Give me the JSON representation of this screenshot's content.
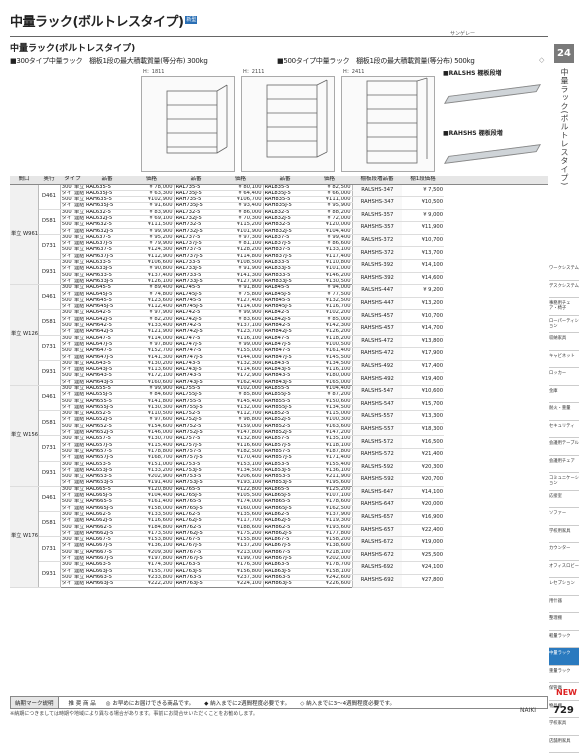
{
  "header": {
    "title": "中量ラック(ボルトレスタイプ)",
    "title_tag": "新型",
    "corner": "サンゲレー",
    "subtitle": "中量ラック(ボルトレスタイプ)",
    "spec_300": "■300タイプ中量ラック　棚板1段の最大積載質量(等分布) 300kg",
    "spec_500": "■500タイプ中量ラック　棚板1段の最大積載質量(等分布) 500kg"
  },
  "side": {
    "page_tab": "24",
    "vertical_title": "中量ラック(ボルトレスタイプ)"
  },
  "diagrams": {
    "h1": "H：1811",
    "h2": "H：2111",
    "h3": "H：2411",
    "board1": "■RALSHS 棚板段増",
    "board2": "■RAHSHS 棚板段増"
  },
  "table_headers": {
    "col1": "間口",
    "col2": "奥行",
    "col3": "タイプ",
    "col4": "品番",
    "col5": "価格",
    "col6": "品番",
    "col7": "価格",
    "col8": "品番",
    "col9": "価格",
    "col10": "棚板段増品番",
    "col11": "棚1段価格"
  },
  "rows": [
    {
      "g": "単立 W961",
      "d": "D461",
      "t1": "300",
      "t2": "単立",
      "c1": "RAL635-5",
      "p1": "¥ 78,000",
      "c2": "RAL735-5",
      "p2": "¥ 80,100",
      "c3": "RAL835-5",
      "p3": "¥ 82,500",
      "bc": "RALSHS-347",
      "bp": "¥ 7,500"
    },
    {
      "t1": "タイプ",
      "t2": "連結",
      "c1": "RAL635J-5",
      "p1": "¥ 63,300",
      "c2": "RAL735J-5",
      "p2": "¥ 64,400",
      "c3": "RAL835J-5",
      "p3": "¥ 66,000"
    },
    {
      "t1": "500",
      "t2": "単立",
      "c1": "RAH635-5",
      "p1": "¥102,900",
      "c2": "RAH735-5",
      "p2": "¥106,700",
      "c3": "RAH835-5",
      "p3": "¥111,000",
      "bc": "RAHSHS-347",
      "bp": "¥10,500"
    },
    {
      "t1": "タイプ",
      "t2": "連結",
      "c1": "RAH635J-5",
      "p1": "¥ 91,600",
      "c2": "RAH735J-5",
      "p2": "¥ 93,400",
      "c3": "RAH835J-5",
      "p3": "¥ 95,900"
    },
    {
      "d": "D581",
      "t1": "300",
      "t2": "単立",
      "c1": "RAL632-5",
      "p1": "¥ 83,900",
      "c2": "RAL732-5",
      "p2": "¥ 86,000",
      "c3": "RAL832-5",
      "p3": "¥ 88,200",
      "bc": "RALSHS-357",
      "bp": "¥ 9,000"
    },
    {
      "t1": "タイプ",
      "t2": "連結",
      "c1": "RAL632J-5",
      "p1": "¥ 69,100",
      "c2": "RAL732J-5",
      "p2": "¥ 70,300",
      "c3": "RAL832J-5",
      "p3": "¥ 72,000"
    },
    {
      "t1": "500",
      "t2": "単立",
      "c1": "RAH632-5",
      "p1": "¥111,500",
      "c2": "RAH732-5",
      "p2": "¥115,200",
      "c3": "RAH832-5",
      "p3": "¥120,000",
      "bc": "RAHSHS-357",
      "bp": "¥11,900"
    },
    {
      "t1": "タイプ",
      "t2": "連結",
      "c1": "RAH632J-5",
      "p1": "¥ 99,900",
      "c2": "RAH732J-5",
      "p2": "¥101,900",
      "c3": "RAH832J-5",
      "p3": "¥104,400"
    },
    {
      "d": "D731",
      "t1": "300",
      "t2": "単立",
      "c1": "RAL637-5",
      "p1": "¥ 95,200",
      "c2": "RAL737-5",
      "p2": "¥ 97,300",
      "c3": "RAL837-5",
      "p3": "¥ 99,400",
      "bc": "RALSHS-372",
      "bp": "¥10,700"
    },
    {
      "t1": "タイプ",
      "t2": "連結",
      "c1": "RAL637J-5",
      "p1": "¥ 79,900",
      "c2": "RAL737J-5",
      "p2": "¥ 81,100",
      "c3": "RAL837J-5",
      "p3": "¥ 86,600"
    },
    {
      "t1": "500",
      "t2": "単立",
      "c1": "RAH637-5",
      "p1": "¥124,300",
      "c2": "RAH737-5",
      "p2": "¥128,200",
      "c3": "RAH837-5",
      "p3": "¥133,100",
      "bc": "RAHSHS-372",
      "bp": "¥13,700"
    },
    {
      "t1": "タイプ",
      "t2": "連結",
      "c1": "RAH637J-5",
      "p1": "¥112,900",
      "c2": "RAH737J-5",
      "p2": "¥114,800",
      "c3": "RAH837J-5",
      "p3": "¥117,400"
    },
    {
      "d": "D931",
      "t1": "300",
      "t2": "単立",
      "c1": "RAL633-5",
      "p1": "¥106,600",
      "c2": "RAL733-5",
      "p2": "¥108,500",
      "c3": "RAL833-5",
      "p3": "¥110,800",
      "bc": "RALSHS-392",
      "bp": "¥14,100"
    },
    {
      "t1": "タイプ",
      "t2": "連結",
      "c1": "RAL633J-5",
      "p1": "¥ 90,800",
      "c2": "RAL733J-5",
      "p2": "¥ 91,900",
      "c3": "RAL833J-5",
      "p3": "¥101,000"
    },
    {
      "t1": "500",
      "t2": "単立",
      "c1": "RAH633-5",
      "p1": "¥137,400",
      "c2": "RAH733-5",
      "p2": "¥141,300",
      "c3": "RAH833-5",
      "p3": "¥146,200",
      "bc": "RAHSHS-392",
      "bp": "¥14,600"
    },
    {
      "t1": "タイプ",
      "t2": "連結",
      "c1": "RAH633J-5",
      "p1": "¥126,100",
      "c2": "RAH733J-5",
      "p2": "¥127,900",
      "c3": "RAH833J-5",
      "p3": "¥130,500",
      "end": true
    },
    {
      "g": "単立 W1261",
      "d": "D461",
      "t1": "300",
      "t2": "単立",
      "c1": "RAL645-5",
      "p1": "¥ 89,400",
      "c2": "RAL745-5",
      "p2": "¥ 91,800",
      "c3": "RAL845-5",
      "p3": "¥ 94,000",
      "bc": "RALSHS-447",
      "bp": "¥ 9,200"
    },
    {
      "t1": "タイプ",
      "t2": "連結",
      "c1": "RAL645J-5",
      "p1": "¥ 74,800",
      "c2": "RAL745J-5",
      "p2": "¥ 75,800",
      "c3": "RAL845J-5",
      "p3": "¥ 77,500"
    },
    {
      "t1": "500",
      "t2": "単立",
      "c1": "RAH645-5",
      "p1": "¥123,600",
      "c2": "RAH745-5",
      "p2": "¥127,400",
      "c3": "RAH845-5",
      "p3": "¥132,500",
      "bc": "RAHSHS-447",
      "bp": "¥13,200"
    },
    {
      "t1": "タイプ",
      "t2": "連結",
      "c1": "RAH645J-5",
      "p1": "¥112,400",
      "c2": "RAH745J-5",
      "p2": "¥114,000",
      "c3": "RAH845J-5",
      "p3": "¥116,700"
    },
    {
      "d": "D581",
      "t1": "300",
      "t2": "単立",
      "c1": "RAL642-5",
      "p1": "¥ 97,900",
      "c2": "RAL742-5",
      "p2": "¥ 99,900",
      "c3": "RAL842-5",
      "p3": "¥102,200",
      "bc": "RALSHS-457",
      "bp": "¥10,700"
    },
    {
      "t1": "タイプ",
      "t2": "連結",
      "c1": "RAL642J-5",
      "p1": "¥ 82,200",
      "c2": "RAL742J-5",
      "p2": "¥ 83,600",
      "c3": "RAL842J-5",
      "p3": "¥ 85,000"
    },
    {
      "t1": "500",
      "t2": "単立",
      "c1": "RAH642-5",
      "p1": "¥133,400",
      "c2": "RAH742-5",
      "p2": "¥137,100",
      "c3": "RAH842-5",
      "p3": "¥142,300",
      "bc": "RAHSHS-457",
      "bp": "¥14,700"
    },
    {
      "t1": "タイプ",
      "t2": "連結",
      "c1": "RAH642J-5",
      "p1": "¥121,900",
      "c2": "RAH742J-5",
      "p2": "¥123,700",
      "c3": "RAH842J-5",
      "p3": "¥126,200"
    },
    {
      "d": "D731",
      "t1": "300",
      "t2": "単立",
      "c1": "RAL647-5",
      "p1": "¥114,000",
      "c2": "RAL747-5",
      "p2": "¥116,100",
      "c3": "RAL847-5",
      "p3": "¥118,200",
      "bc": "RALSHS-472",
      "bp": "¥13,800"
    },
    {
      "t1": "タイプ",
      "t2": "連結",
      "c1": "RAL647J-5",
      "p1": "¥ 97,800",
      "c2": "RAL747J-5",
      "p2": "¥ 99,000",
      "c3": "RAL847J-5",
      "p3": "¥100,500"
    },
    {
      "t1": "500",
      "t2": "単立",
      "c1": "RAH647-5",
      "p1": "¥152,700",
      "c2": "RAH747-5",
      "p2": "¥155,000",
      "c3": "RAH847-5",
      "p3": "¥161,400",
      "bc": "RAHSHS-472",
      "bp": "¥17,900"
    },
    {
      "t1": "タイプ",
      "t2": "連結",
      "c1": "RAH647J-5",
      "p1": "¥141,300",
      "c2": "RAH747J-5",
      "p2": "¥144,000",
      "c3": "RAH847J-5",
      "p3": "¥145,500"
    },
    {
      "d": "D931",
      "t1": "300",
      "t2": "単立",
      "c1": "RAL643-5",
      "p1": "¥130,200",
      "c2": "RAL743-5",
      "p2": "¥132,300",
      "c3": "RAL843-5",
      "p3": "¥134,500",
      "bc": "RALSHS-492",
      "bp": "¥17,400"
    },
    {
      "t1": "タイプ",
      "t2": "連結",
      "c1": "RAL643J-5",
      "p1": "¥113,600",
      "c2": "RAL743J-5",
      "p2": "¥114,600",
      "c3": "RAL843J-5",
      "p3": "¥116,100"
    },
    {
      "t1": "500",
      "t2": "単立",
      "c1": "RAH643-5",
      "p1": "¥172,100",
      "c2": "RAH743-5",
      "p2": "¥172,900",
      "c3": "RAH843-5",
      "p3": "¥180,000",
      "bc": "RAHSHS-492",
      "bp": "¥19,400"
    },
    {
      "t1": "タイプ",
      "t2": "連結",
      "c1": "RAH643J-5",
      "p1": "¥160,600",
      "c2": "RAH743J-5",
      "p2": "¥162,400",
      "c3": "RAH843J-5",
      "p3": "¥165,000",
      "end": true
    },
    {
      "g": "単立 W1561",
      "d": "D461",
      "t1": "300",
      "t2": "単立",
      "c1": "RAL655-5",
      "p1": "¥ 99,900",
      "c2": "RAL755-5",
      "p2": "¥102,000",
      "c3": "RAL855-5",
      "p3": "¥104,400",
      "bc": "RALSHS-547",
      "bp": "¥10,600"
    },
    {
      "t1": "タイプ",
      "t2": "連結",
      "c1": "RAL655J-5",
      "p1": "¥ 84,600",
      "c2": "RAL755J-5",
      "p2": "¥ 85,800",
      "c3": "RAL855J-5",
      "p3": "¥ 87,200"
    },
    {
      "t1": "500",
      "t2": "単立",
      "c1": "RAH655-5",
      "p1": "¥141,800",
      "c2": "RAH755-5",
      "p2": "¥145,400",
      "c3": "RAH855-5",
      "p3": "¥150,600",
      "bc": "RAHSHS-547",
      "bp": "¥15,700"
    },
    {
      "t1": "タイプ",
      "t2": "連結",
      "c1": "RAH655J-5",
      "p1": "¥130,300",
      "c2": "RAH755J-5",
      "p2": "¥132,000",
      "c3": "RAH855J-5",
      "p3": "¥134,500"
    },
    {
      "d": "D581",
      "t1": "300",
      "t2": "単立",
      "c1": "RAL652-5",
      "p1": "¥110,500",
      "c2": "RAL752-5",
      "p2": "¥112,700",
      "c3": "RAL852-5",
      "p3": "¥115,000",
      "bc": "RALSHS-557",
      "bp": "¥13,300"
    },
    {
      "t1": "タイプ",
      "t2": "連結",
      "c1": "RAL652J-5",
      "p1": "¥ 97,600",
      "c2": "RAL752J-5",
      "p2": "¥ 98,800",
      "c3": "RAL852J-5",
      "p3": "¥100,300"
    },
    {
      "t1": "500",
      "t2": "単立",
      "c1": "RAH652-5",
      "p1": "¥154,600",
      "c2": "RAH752-5",
      "p2": "¥159,000",
      "c3": "RAH852-5",
      "p3": "¥163,600",
      "bc": "RAHSHS-557",
      "bp": "¥18,300"
    },
    {
      "t1": "タイプ",
      "t2": "連結",
      "c1": "RAH652J-5",
      "p1": "¥146,000",
      "c2": "RAH752J-5",
      "p2": "¥147,800",
      "c3": "RAH852J-5",
      "p3": "¥147,200"
    },
    {
      "d": "D731",
      "t1": "300",
      "t2": "単立",
      "c1": "RAL657-5",
      "p1": "¥130,700",
      "c2": "RAL757-5",
      "p2": "¥132,800",
      "c3": "RAL857-5",
      "p3": "¥135,100",
      "bc": "RALSHS-572",
      "bp": "¥16,500"
    },
    {
      "t1": "タイプ",
      "t2": "連結",
      "c1": "RAL657J-5",
      "p1": "¥115,400",
      "c2": "RAL757J-5",
      "p2": "¥116,600",
      "c3": "RAL857J-5",
      "p3": "¥118,100"
    },
    {
      "t1": "500",
      "t2": "単立",
      "c1": "RAH657-5",
      "p1": "¥178,800",
      "c2": "RAH757-5",
      "p2": "¥182,500",
      "c3": "RAH857-5",
      "p3": "¥187,800",
      "bc": "RAHSHS-572",
      "bp": "¥21,400"
    },
    {
      "t1": "タイプ",
      "t2": "連結",
      "c1": "RAH657J-5",
      "p1": "¥168,700",
      "c2": "RAH757J-5",
      "p2": "¥170,400",
      "c3": "RAH857J-5",
      "p3": "¥171,400"
    },
    {
      "d": "D931",
      "t1": "300",
      "t2": "単立",
      "c1": "RAL653-5",
      "p1": "¥151,000",
      "c2": "RAL753-5",
      "p2": "¥153,100",
      "c3": "RAL853-5",
      "p3": "¥155,400",
      "bc": "RALSHS-592",
      "bp": "¥20,300"
    },
    {
      "t1": "タイプ",
      "t2": "連結",
      "c1": "RAL653J-5",
      "p1": "¥133,200",
      "c2": "RAL753J-5",
      "p2": "¥134,500",
      "c3": "RAL853J-5",
      "p3": "¥136,100"
    },
    {
      "t1": "500",
      "t2": "単立",
      "c1": "RAH653-5",
      "p1": "¥202,900",
      "c2": "RAH753-5",
      "p2": "¥206,600",
      "c3": "RAH853-5",
      "p3": "¥211,900",
      "bc": "RAHSHS-592",
      "bp": "¥20,700"
    },
    {
      "t1": "タイプ",
      "t2": "連結",
      "c1": "RAH653J-5",
      "p1": "¥191,400",
      "c2": "RAH753J-5",
      "p2": "¥193,100",
      "c3": "RAH853J-5",
      "p3": "¥195,600",
      "end": true
    },
    {
      "g": "単立 W1761",
      "d": "D461",
      "t1": "300",
      "t2": "単立",
      "c1": "RAL665-5",
      "p1": "¥120,800",
      "c2": "RAL765-5",
      "p2": "¥122,800",
      "c3": "RAL865-5",
      "p3": "¥125,200",
      "bc": "RALSHS-647",
      "bp": "¥14,100"
    },
    {
      "t1": "タイプ",
      "t2": "連結",
      "c1": "RAL665J-5",
      "p1": "¥104,400",
      "c2": "RAL765J-5",
      "p2": "¥105,500",
      "c3": "RAL865J-5",
      "p3": "¥107,100"
    },
    {
      "t1": "500",
      "t2": "単立",
      "c1": "RAH665-5",
      "p1": "¥161,400",
      "c2": "RAH765-5",
      "p2": "¥174,000",
      "c3": "RAH865-5",
      "p3": "¥178,600",
      "bc": "RAHSHS-647",
      "bp": "¥20,000"
    },
    {
      "t1": "タイプ",
      "t2": "連結",
      "c1": "RAH665J-5",
      "p1": "¥158,000",
      "c2": "RAH765J-5",
      "p2": "¥160,000",
      "c3": "RAH865J-5",
      "p3": "¥162,500"
    },
    {
      "d": "D581",
      "t1": "300",
      "t2": "単立",
      "c1": "RAL662-5",
      "p1": "¥133,500",
      "c2": "RAL762-5",
      "p2": "¥135,600",
      "c3": "RAL862-5",
      "p3": "¥137,900",
      "bc": "RALSHS-657",
      "bp": "¥16,900"
    },
    {
      "t1": "タイプ",
      "t2": "連結",
      "c1": "RAL662J-5",
      "p1": "¥116,600",
      "c2": "RAL762J-5",
      "p2": "¥117,700",
      "c3": "RAL862J-5",
      "p3": "¥119,300"
    },
    {
      "t1": "500",
      "t2": "単立",
      "c1": "RAH662-5",
      "p1": "¥184,800",
      "c2": "RAH762-5",
      "p2": "¥188,600",
      "c3": "RAH862-5",
      "p3": "¥193,600",
      "bc": "RAHSHS-657",
      "bp": "¥22,400"
    },
    {
      "t1": "タイプ",
      "t2": "連結",
      "c1": "RAH662J-5",
      "p1": "¥173,500",
      "c2": "RAH762J-5",
      "p2": "¥175,200",
      "c3": "RAH862J-5",
      "p3": "¥177,800"
    },
    {
      "d": "D731",
      "t1": "300",
      "t2": "単立",
      "c1": "RAL667-5",
      "p1": "¥153,800",
      "c2": "RAL767-5",
      "p2": "¥155,800",
      "c3": "RAL867-5",
      "p3": "¥158,200",
      "bc": "RALSHS-672",
      "bp": "¥19,000"
    },
    {
      "t1": "タイプ",
      "t2": "連結",
      "c1": "RAL667J-5",
      "p1": "¥136,100",
      "c2": "RAL767J-5",
      "p2": "¥137,200",
      "c3": "RAL867J-5",
      "p3": "¥138,600"
    },
    {
      "t1": "500",
      "t2": "単立",
      "c1": "RAH667-5",
      "p1": "¥209,300",
      "c2": "RAH767-5",
      "p2": "¥213,000",
      "c3": "RAH867-5",
      "p3": "¥218,100",
      "bc": "RAHSHS-672",
      "bp": "¥25,500"
    },
    {
      "t1": "タイプ",
      "t2": "連結",
      "c1": "RAH667J-5",
      "p1": "¥197,800",
      "c2": "RAH767J-5",
      "p2": "¥199,700",
      "c3": "RAH867J-5",
      "p3": "¥202,000"
    },
    {
      "d": "D931",
      "t1": "300",
      "t2": "単立",
      "c1": "RAL663-5",
      "p1": "¥174,300",
      "c2": "RAL763-5",
      "p2": "¥176,300",
      "c3": "RAL863-5",
      "p3": "¥178,700",
      "bc": "RALSHS-692",
      "bp": "¥24,100"
    },
    {
      "t1": "タイプ",
      "t2": "連結",
      "c1": "RAL663J-5",
      "p1": "¥155,700",
      "c2": "RAL763J-5",
      "p2": "¥156,800",
      "c3": "RAL863J-5",
      "p3": "¥158,100"
    },
    {
      "t1": "500",
      "t2": "単立",
      "c1": "RAH663-5",
      "p1": "¥233,800",
      "c2": "RAH763-5",
      "p2": "¥237,300",
      "c3": "RAH863-5",
      "p3": "¥242,600",
      "bc": "RAHSHS-692",
      "bp": "¥27,800"
    },
    {
      "t1": "タイプ",
      "t2": "連結",
      "c1": "RAH663J-5",
      "p1": "¥222,200",
      "c2": "RAH763J-5",
      "p2": "¥224,100",
      "c3": "RAH863J-5",
      "p3": "¥226,600",
      "end": true
    }
  ],
  "right_nav": [
    "ワークシステム",
    "デスクシステム",
    "事務用チェア・椅子",
    "ローパーティション",
    "収納家具",
    "キャビネット",
    "ロッカー",
    "金庫",
    "耐火・重量",
    "セキュリティ",
    "会議用テーブル",
    "会議用チェア",
    "コミュニケーション",
    "応接室",
    "ソファー",
    "学校用家具",
    "カウンター",
    "オフィスロビー",
    "レセプション",
    "用什器",
    "整理棚",
    "軽量ラック",
    "中量ラック",
    "重量ラック",
    "保管庫",
    "物品棚",
    "学校家具",
    "店舗用家具"
  ],
  "right_nav_highlight": 22,
  "legend": {
    "label": "納期マーク説明",
    "l1": "推 奨 商 品",
    "l2": "◎ お早めにお届けできる商品です。",
    "l3": "◆ 納入までに2週間程度必要です。",
    "l4": "◇ 納入までに3〜4週間程度必要です。",
    "l5": "● 納入までに2週間程度必要です。",
    "l6": "△ 受注生産品のため納期がかかります。"
  },
  "footer": {
    "note": "※納期につきましては時期や地域により異なる場合があります。事前にお問合せいただくことをお勧めします。",
    "new_mark": "NEW",
    "brand": "NAIKI",
    "page": "729"
  }
}
